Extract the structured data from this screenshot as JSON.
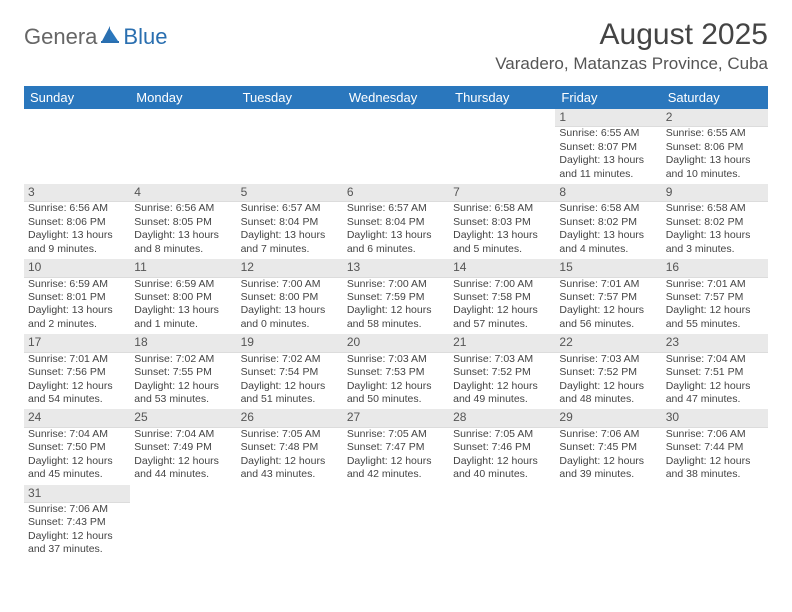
{
  "logo": {
    "part1": "Genera",
    "part2": "Blue"
  },
  "title": "August 2025",
  "location": "Varadero, Matanzas Province, Cuba",
  "colors": {
    "header_bg": "#2a77bd",
    "header_fg": "#ffffff",
    "accent": "#2a6fb0",
    "daynum_bg": "#e9e9e9",
    "text": "#444444"
  },
  "weekdays": [
    "Sunday",
    "Monday",
    "Tuesday",
    "Wednesday",
    "Thursday",
    "Friday",
    "Saturday"
  ],
  "weeks": [
    [
      null,
      null,
      null,
      null,
      null,
      {
        "n": "1",
        "sr": "Sunrise: 6:55 AM",
        "ss": "Sunset: 8:07 PM",
        "dl1": "Daylight: 13 hours",
        "dl2": "and 11 minutes."
      },
      {
        "n": "2",
        "sr": "Sunrise: 6:55 AM",
        "ss": "Sunset: 8:06 PM",
        "dl1": "Daylight: 13 hours",
        "dl2": "and 10 minutes."
      }
    ],
    [
      {
        "n": "3",
        "sr": "Sunrise: 6:56 AM",
        "ss": "Sunset: 8:06 PM",
        "dl1": "Daylight: 13 hours",
        "dl2": "and 9 minutes."
      },
      {
        "n": "4",
        "sr": "Sunrise: 6:56 AM",
        "ss": "Sunset: 8:05 PM",
        "dl1": "Daylight: 13 hours",
        "dl2": "and 8 minutes."
      },
      {
        "n": "5",
        "sr": "Sunrise: 6:57 AM",
        "ss": "Sunset: 8:04 PM",
        "dl1": "Daylight: 13 hours",
        "dl2": "and 7 minutes."
      },
      {
        "n": "6",
        "sr": "Sunrise: 6:57 AM",
        "ss": "Sunset: 8:04 PM",
        "dl1": "Daylight: 13 hours",
        "dl2": "and 6 minutes."
      },
      {
        "n": "7",
        "sr": "Sunrise: 6:58 AM",
        "ss": "Sunset: 8:03 PM",
        "dl1": "Daylight: 13 hours",
        "dl2": "and 5 minutes."
      },
      {
        "n": "8",
        "sr": "Sunrise: 6:58 AM",
        "ss": "Sunset: 8:02 PM",
        "dl1": "Daylight: 13 hours",
        "dl2": "and 4 minutes."
      },
      {
        "n": "9",
        "sr": "Sunrise: 6:58 AM",
        "ss": "Sunset: 8:02 PM",
        "dl1": "Daylight: 13 hours",
        "dl2": "and 3 minutes."
      }
    ],
    [
      {
        "n": "10",
        "sr": "Sunrise: 6:59 AM",
        "ss": "Sunset: 8:01 PM",
        "dl1": "Daylight: 13 hours",
        "dl2": "and 2 minutes."
      },
      {
        "n": "11",
        "sr": "Sunrise: 6:59 AM",
        "ss": "Sunset: 8:00 PM",
        "dl1": "Daylight: 13 hours",
        "dl2": "and 1 minute."
      },
      {
        "n": "12",
        "sr": "Sunrise: 7:00 AM",
        "ss": "Sunset: 8:00 PM",
        "dl1": "Daylight: 13 hours",
        "dl2": "and 0 minutes."
      },
      {
        "n": "13",
        "sr": "Sunrise: 7:00 AM",
        "ss": "Sunset: 7:59 PM",
        "dl1": "Daylight: 12 hours",
        "dl2": "and 58 minutes."
      },
      {
        "n": "14",
        "sr": "Sunrise: 7:00 AM",
        "ss": "Sunset: 7:58 PM",
        "dl1": "Daylight: 12 hours",
        "dl2": "and 57 minutes."
      },
      {
        "n": "15",
        "sr": "Sunrise: 7:01 AM",
        "ss": "Sunset: 7:57 PM",
        "dl1": "Daylight: 12 hours",
        "dl2": "and 56 minutes."
      },
      {
        "n": "16",
        "sr": "Sunrise: 7:01 AM",
        "ss": "Sunset: 7:57 PM",
        "dl1": "Daylight: 12 hours",
        "dl2": "and 55 minutes."
      }
    ],
    [
      {
        "n": "17",
        "sr": "Sunrise: 7:01 AM",
        "ss": "Sunset: 7:56 PM",
        "dl1": "Daylight: 12 hours",
        "dl2": "and 54 minutes."
      },
      {
        "n": "18",
        "sr": "Sunrise: 7:02 AM",
        "ss": "Sunset: 7:55 PM",
        "dl1": "Daylight: 12 hours",
        "dl2": "and 53 minutes."
      },
      {
        "n": "19",
        "sr": "Sunrise: 7:02 AM",
        "ss": "Sunset: 7:54 PM",
        "dl1": "Daylight: 12 hours",
        "dl2": "and 51 minutes."
      },
      {
        "n": "20",
        "sr": "Sunrise: 7:03 AM",
        "ss": "Sunset: 7:53 PM",
        "dl1": "Daylight: 12 hours",
        "dl2": "and 50 minutes."
      },
      {
        "n": "21",
        "sr": "Sunrise: 7:03 AM",
        "ss": "Sunset: 7:52 PM",
        "dl1": "Daylight: 12 hours",
        "dl2": "and 49 minutes."
      },
      {
        "n": "22",
        "sr": "Sunrise: 7:03 AM",
        "ss": "Sunset: 7:52 PM",
        "dl1": "Daylight: 12 hours",
        "dl2": "and 48 minutes."
      },
      {
        "n": "23",
        "sr": "Sunrise: 7:04 AM",
        "ss": "Sunset: 7:51 PM",
        "dl1": "Daylight: 12 hours",
        "dl2": "and 47 minutes."
      }
    ],
    [
      {
        "n": "24",
        "sr": "Sunrise: 7:04 AM",
        "ss": "Sunset: 7:50 PM",
        "dl1": "Daylight: 12 hours",
        "dl2": "and 45 minutes."
      },
      {
        "n": "25",
        "sr": "Sunrise: 7:04 AM",
        "ss": "Sunset: 7:49 PM",
        "dl1": "Daylight: 12 hours",
        "dl2": "and 44 minutes."
      },
      {
        "n": "26",
        "sr": "Sunrise: 7:05 AM",
        "ss": "Sunset: 7:48 PM",
        "dl1": "Daylight: 12 hours",
        "dl2": "and 43 minutes."
      },
      {
        "n": "27",
        "sr": "Sunrise: 7:05 AM",
        "ss": "Sunset: 7:47 PM",
        "dl1": "Daylight: 12 hours",
        "dl2": "and 42 minutes."
      },
      {
        "n": "28",
        "sr": "Sunrise: 7:05 AM",
        "ss": "Sunset: 7:46 PM",
        "dl1": "Daylight: 12 hours",
        "dl2": "and 40 minutes."
      },
      {
        "n": "29",
        "sr": "Sunrise: 7:06 AM",
        "ss": "Sunset: 7:45 PM",
        "dl1": "Daylight: 12 hours",
        "dl2": "and 39 minutes."
      },
      {
        "n": "30",
        "sr": "Sunrise: 7:06 AM",
        "ss": "Sunset: 7:44 PM",
        "dl1": "Daylight: 12 hours",
        "dl2": "and 38 minutes."
      }
    ],
    [
      {
        "n": "31",
        "sr": "Sunrise: 7:06 AM",
        "ss": "Sunset: 7:43 PM",
        "dl1": "Daylight: 12 hours",
        "dl2": "and 37 minutes."
      },
      null,
      null,
      null,
      null,
      null,
      null
    ]
  ]
}
